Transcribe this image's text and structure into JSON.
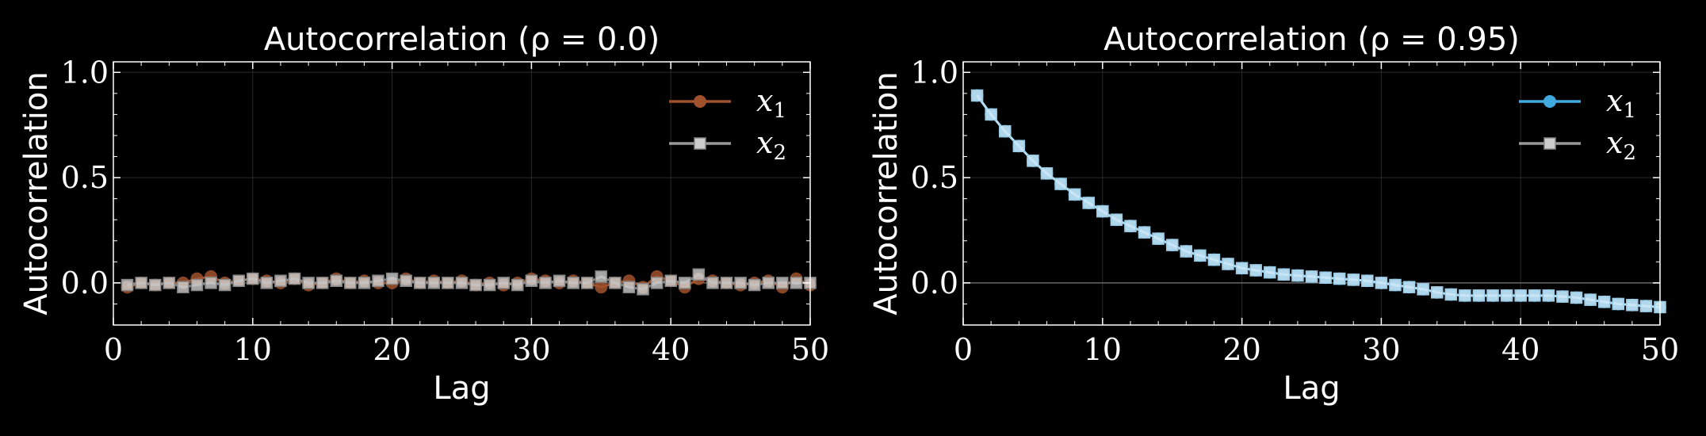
{
  "chart_data": [
    {
      "type": "line",
      "title": "Autocorrelation (ρ = 0.0)",
      "xlabel": "Lag",
      "ylabel": "Autocorrelation",
      "xlim": [
        0,
        50
      ],
      "ylim": [
        -0.2,
        1.05
      ],
      "xticks": [
        "0",
        "10",
        "20",
        "30",
        "40",
        "50"
      ],
      "yticks": [
        "0.0",
        "0.5",
        "1.0"
      ],
      "grid": true,
      "legend_position": "top-right",
      "series": [
        {
          "name": "x",
          "subscript": "1",
          "marker": "circle",
          "color": "#a0522d",
          "x": [
            1,
            2,
            3,
            4,
            5,
            6,
            7,
            8,
            9,
            10,
            11,
            12,
            13,
            14,
            15,
            16,
            17,
            18,
            19,
            20,
            21,
            22,
            23,
            24,
            25,
            26,
            27,
            28,
            29,
            30,
            31,
            32,
            33,
            34,
            35,
            36,
            37,
            38,
            39,
            40,
            41,
            42,
            43,
            44,
            45,
            46,
            47,
            48,
            49,
            50
          ],
          "y": [
            -0.02,
            0.0,
            -0.01,
            0.0,
            0.0,
            0.02,
            0.03,
            0.0,
            0.01,
            0.02,
            0.01,
            0.0,
            0.02,
            -0.01,
            0.0,
            0.02,
            0.0,
            0.01,
            0.0,
            0.0,
            0.02,
            0.0,
            0.01,
            0.0,
            0.01,
            -0.01,
            0.0,
            -0.01,
            0.0,
            0.02,
            0.01,
            0.0,
            0.01,
            0.0,
            -0.02,
            0.0,
            0.01,
            -0.02,
            0.03,
            0.01,
            -0.02,
            0.02,
            0.01,
            0.0,
            -0.01,
            0.0,
            0.01,
            -0.02,
            0.02,
            -0.01
          ]
        },
        {
          "name": "x",
          "subscript": "2",
          "marker": "square",
          "color": "#999999",
          "x": [
            1,
            2,
            3,
            4,
            5,
            6,
            7,
            8,
            9,
            10,
            11,
            12,
            13,
            14,
            15,
            16,
            17,
            18,
            19,
            20,
            21,
            22,
            23,
            24,
            25,
            26,
            27,
            28,
            29,
            30,
            31,
            32,
            33,
            34,
            35,
            36,
            37,
            38,
            39,
            40,
            41,
            42,
            43,
            44,
            45,
            46,
            47,
            48,
            49,
            50
          ],
          "y": [
            -0.01,
            0.0,
            -0.01,
            0.0,
            -0.02,
            -0.01,
            0.0,
            -0.01,
            0.01,
            0.02,
            0.0,
            0.01,
            0.02,
            0.0,
            0.0,
            0.01,
            0.0,
            0.0,
            0.01,
            0.02,
            0.01,
            0.0,
            0.0,
            0.0,
            0.0,
            -0.01,
            -0.01,
            0.0,
            -0.01,
            0.01,
            0.0,
            0.01,
            0.0,
            0.0,
            0.03,
            0.0,
            -0.02,
            -0.03,
            0.0,
            0.01,
            0.0,
            0.04,
            0.0,
            0.0,
            0.0,
            -0.01,
            0.0,
            0.0,
            0.0,
            0.0
          ]
        }
      ]
    },
    {
      "type": "line",
      "title": "Autocorrelation (ρ = 0.95)",
      "xlabel": "Lag",
      "ylabel": "Autocorrelation",
      "xlim": [
        0,
        50
      ],
      "ylim": [
        -0.2,
        1.05
      ],
      "xticks": [
        "0",
        "10",
        "20",
        "30",
        "40",
        "50"
      ],
      "yticks": [
        "0.0",
        "0.5",
        "1.0"
      ],
      "grid": true,
      "legend_position": "top-right",
      "series": [
        {
          "name": "x",
          "subscript": "1",
          "marker": "circle",
          "color": "#3fa9e0",
          "x": [
            1,
            2,
            3,
            4,
            5,
            6,
            7,
            8,
            9,
            10,
            11,
            12,
            13,
            14,
            15,
            16,
            17,
            18,
            19,
            20,
            21,
            22,
            23,
            24,
            25,
            26,
            27,
            28,
            29,
            30,
            31,
            32,
            33,
            34,
            35,
            36,
            37,
            38,
            39,
            40,
            41,
            42,
            43,
            44,
            45,
            46,
            47,
            48,
            49,
            50
          ],
          "y": [
            0.89,
            0.8,
            0.72,
            0.65,
            0.58,
            0.52,
            0.47,
            0.42,
            0.38,
            0.34,
            0.3,
            0.27,
            0.24,
            0.21,
            0.18,
            0.15,
            0.13,
            0.11,
            0.09,
            0.07,
            0.06,
            0.05,
            0.04,
            0.035,
            0.03,
            0.025,
            0.02,
            0.015,
            0.01,
            0.0,
            -0.01,
            -0.02,
            -0.03,
            -0.045,
            -0.055,
            -0.06,
            -0.06,
            -0.06,
            -0.06,
            -0.06,
            -0.06,
            -0.06,
            -0.065,
            -0.07,
            -0.08,
            -0.09,
            -0.1,
            -0.105,
            -0.11,
            -0.115
          ]
        },
        {
          "name": "x",
          "subscript": "2",
          "marker": "square",
          "color": "#999999",
          "x": [
            1,
            2,
            3,
            4,
            5,
            6,
            7,
            8,
            9,
            10,
            11,
            12,
            13,
            14,
            15,
            16,
            17,
            18,
            19,
            20,
            21,
            22,
            23,
            24,
            25,
            26,
            27,
            28,
            29,
            30,
            31,
            32,
            33,
            34,
            35,
            36,
            37,
            38,
            39,
            40,
            41,
            42,
            43,
            44,
            45,
            46,
            47,
            48,
            49,
            50
          ],
          "y": [
            0.89,
            0.8,
            0.72,
            0.65,
            0.58,
            0.52,
            0.47,
            0.42,
            0.38,
            0.34,
            0.3,
            0.27,
            0.24,
            0.21,
            0.18,
            0.15,
            0.13,
            0.11,
            0.09,
            0.07,
            0.06,
            0.05,
            0.04,
            0.035,
            0.03,
            0.025,
            0.02,
            0.015,
            0.01,
            0.0,
            -0.01,
            -0.02,
            -0.03,
            -0.045,
            -0.055,
            -0.06,
            -0.06,
            -0.06,
            -0.06,
            -0.06,
            -0.06,
            -0.06,
            -0.065,
            -0.07,
            -0.08,
            -0.09,
            -0.1,
            -0.105,
            -0.11,
            -0.115
          ]
        }
      ]
    }
  ]
}
